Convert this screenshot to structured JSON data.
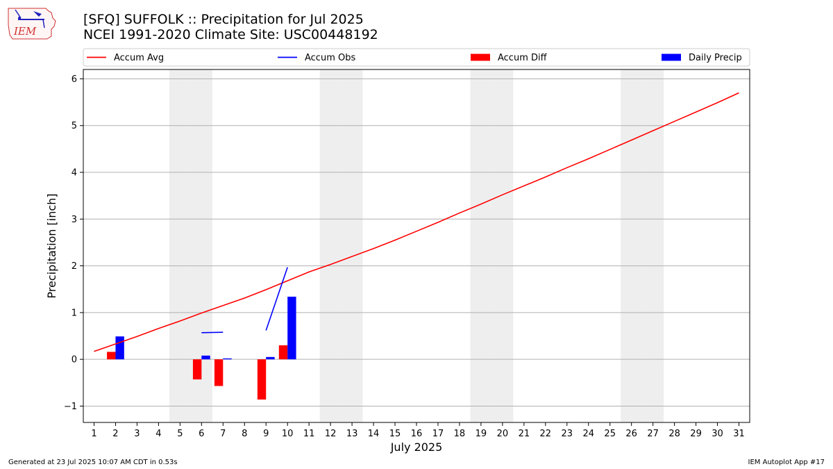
{
  "header": {
    "logo_text": "IEM",
    "title_line1": "[SFQ] SUFFOLK :: Precipitation for Jul 2025",
    "title_line2": "NCEI 1991-2020 Climate Site: USC00448192"
  },
  "footer": {
    "left": "Generated at 23 Jul 2025 10:07 AM CDT in 0.53s",
    "right": "IEM Autoplot App #17"
  },
  "colors": {
    "avg": "#ff0000",
    "obs": "#0000ff",
    "diff": "#ff0000",
    "daily": "#0000ff",
    "weekend": "#eeeeee",
    "grid": "#b0b0b0"
  },
  "chart_data": {
    "type": "bar",
    "xlabel": "July 2025",
    "ylabel": "Precipitation [inch]",
    "xlim": [
      0.5,
      31.5
    ],
    "ylim": [
      -1.35,
      6.2
    ],
    "yticks": [
      -1,
      0,
      1,
      2,
      3,
      4,
      5,
      6
    ],
    "ytick_labels": [
      "−1",
      "0",
      "1",
      "2",
      "3",
      "4",
      "5",
      "6"
    ],
    "days": [
      1,
      2,
      3,
      4,
      5,
      6,
      7,
      8,
      9,
      10,
      11,
      12,
      13,
      14,
      15,
      16,
      17,
      18,
      19,
      20,
      21,
      22,
      23,
      24,
      25,
      26,
      27,
      28,
      29,
      30,
      31
    ],
    "weekend_days": [
      5,
      6,
      12,
      13,
      19,
      20,
      26,
      27
    ],
    "legend": {
      "position": "top",
      "entries": [
        {
          "label": "Accum Avg",
          "kind": "line",
          "series": "avg"
        },
        {
          "label": "Accum Obs",
          "kind": "line",
          "series": "obs"
        },
        {
          "label": "Accum Diff",
          "kind": "bar",
          "series": "diff"
        },
        {
          "label": "Daily Precip",
          "kind": "bar",
          "series": "daily"
        }
      ]
    },
    "accum_avg": {
      "name": "Accum Avg",
      "x": [
        1,
        2,
        3,
        4,
        5,
        6,
        7,
        8,
        9,
        10,
        11,
        12,
        13,
        14,
        15,
        16,
        17,
        18,
        19,
        20,
        21,
        22,
        23,
        24,
        25,
        26,
        27,
        28,
        29,
        30,
        31
      ],
      "values": [
        0.17,
        0.33,
        0.49,
        0.66,
        0.82,
        0.99,
        1.15,
        1.31,
        1.49,
        1.68,
        1.87,
        2.03,
        2.2,
        2.37,
        2.55,
        2.74,
        2.93,
        3.13,
        3.32,
        3.52,
        3.71,
        3.9,
        4.1,
        4.29,
        4.49,
        4.69,
        4.89,
        5.09,
        5.29,
        5.49,
        5.7
      ]
    },
    "accum_obs": {
      "name": "Accum Obs",
      "segments": [
        {
          "x": [
            6,
            7
          ],
          "values": [
            0.57,
            0.58
          ]
        },
        {
          "x": [
            9,
            10
          ],
          "values": [
            0.62,
            1.97
          ]
        }
      ]
    },
    "accum_diff": {
      "name": "Accum Diff",
      "x": [
        2,
        6,
        7,
        9,
        10
      ],
      "values": [
        0.16,
        -0.43,
        -0.57,
        -0.86,
        0.3
      ]
    },
    "daily_precip": {
      "name": "Daily Precip",
      "x": [
        2,
        6,
        7,
        9,
        10
      ],
      "values": [
        0.49,
        0.08,
        0.02,
        0.05,
        1.34
      ]
    }
  }
}
